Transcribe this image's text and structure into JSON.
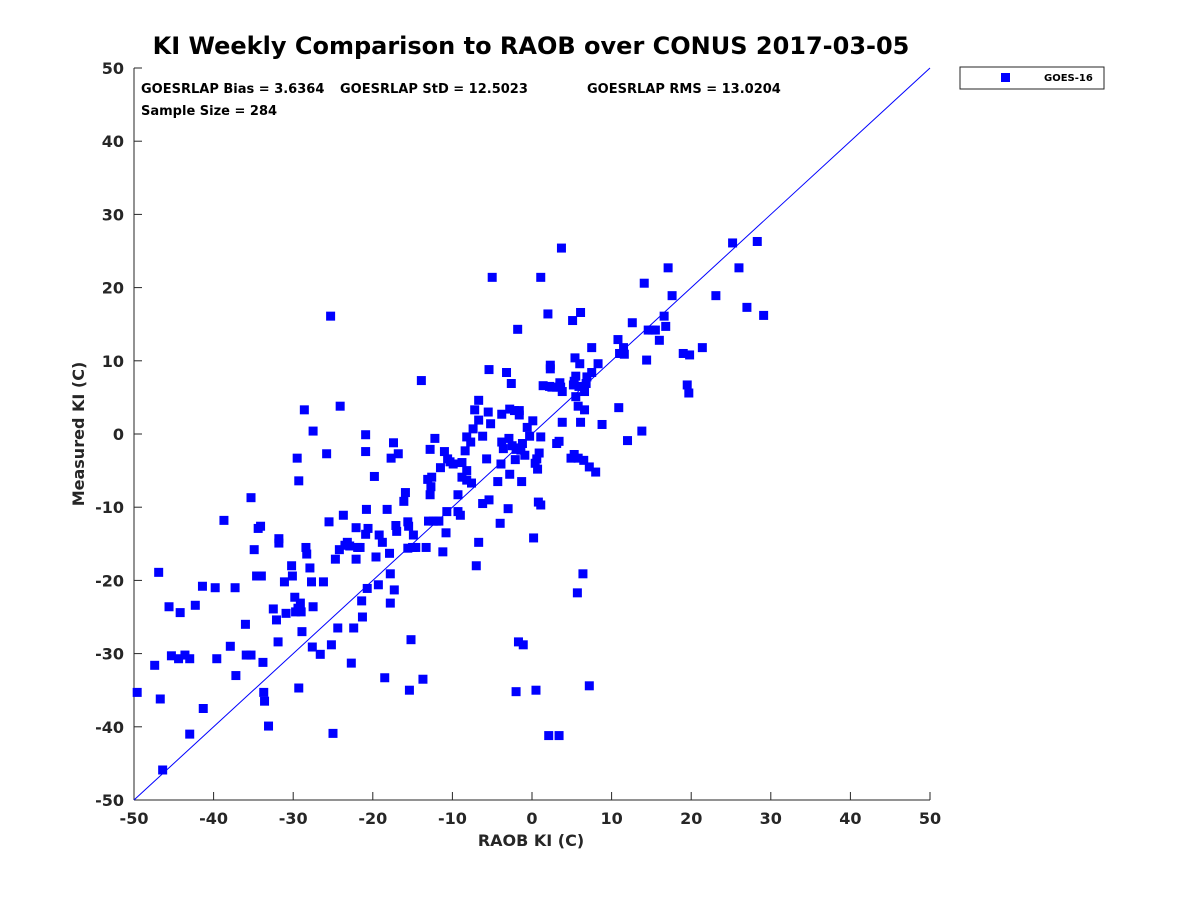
{
  "chart_data": {
    "type": "scatter",
    "title": "KI Weekly Comparison to RAOB over CONUS 2017-03-05",
    "xlabel": "RAOB KI (C)",
    "ylabel": "Measured KI (C)",
    "xlim": [
      -50,
      50
    ],
    "ylim": [
      -50,
      50
    ],
    "xticks": [
      "-50",
      "-40",
      "-30",
      "-20",
      "-10",
      "0",
      "10",
      "20",
      "30",
      "40",
      "50"
    ],
    "yticks": [
      "-50",
      "-40",
      "-30",
      "-20",
      "-10",
      "0",
      "10",
      "20",
      "30",
      "40",
      "50"
    ],
    "grid": false,
    "legend_position": "outside-top-right",
    "reference_line": {
      "name": "one-to-one",
      "from": [
        -50,
        -50
      ],
      "to": [
        50,
        50
      ],
      "color": "#0000ff"
    },
    "stats": {
      "bias": "GOESRLAP Bias = 3.6364",
      "std": "GOESRLAP StD = 12.5023",
      "rms": "GOESRLAP RMS = 13.0204",
      "sample_size": "Sample Size = 284"
    },
    "series": [
      {
        "name": "GOES-16",
        "color": "#0000ff",
        "marker": "square",
        "points": [
          [
            -49.6,
            -35.3
          ],
          [
            -47.4,
            -31.6
          ],
          [
            -46.9,
            -18.9
          ],
          [
            -46.7,
            -36.2
          ],
          [
            -46.4,
            -45.9
          ],
          [
            -45.6,
            -23.6
          ],
          [
            -45.3,
            -30.3
          ],
          [
            -44.4,
            -30.7
          ],
          [
            -44.2,
            -24.4
          ],
          [
            -43.6,
            -30.2
          ],
          [
            -43.0,
            -30.7
          ],
          [
            -43.0,
            -41.0
          ],
          [
            -42.3,
            -23.4
          ],
          [
            -41.4,
            -20.8
          ],
          [
            -41.3,
            -37.5
          ],
          [
            -39.8,
            -21.0
          ],
          [
            -39.6,
            -30.7
          ],
          [
            -38.7,
            -11.8
          ],
          [
            -37.9,
            -29.0
          ],
          [
            -37.3,
            -21.0
          ],
          [
            -37.2,
            -33.0
          ],
          [
            -36.0,
            -26.0
          ],
          [
            -35.9,
            -30.2
          ],
          [
            -35.3,
            -30.2
          ],
          [
            -35.3,
            -8.7
          ],
          [
            -34.9,
            -15.8
          ],
          [
            -34.6,
            -19.4
          ],
          [
            -34.4,
            -12.9
          ],
          [
            -34.1,
            -12.6
          ],
          [
            -34.0,
            -19.4
          ],
          [
            -33.8,
            -31.2
          ],
          [
            -33.7,
            -35.3
          ],
          [
            -33.6,
            -36.5
          ],
          [
            -33.1,
            -39.9
          ],
          [
            -32.5,
            -23.9
          ],
          [
            -32.1,
            -25.4
          ],
          [
            -31.9,
            -28.4
          ],
          [
            -31.8,
            -14.3
          ],
          [
            -31.8,
            -14.9
          ],
          [
            -31.1,
            -20.2
          ],
          [
            -30.9,
            -24.5
          ],
          [
            -30.2,
            -18.0
          ],
          [
            -30.1,
            -19.4
          ],
          [
            -29.8,
            -22.3
          ],
          [
            -29.7,
            -24.3
          ],
          [
            -29.5,
            -3.3
          ],
          [
            -29.4,
            -23.8
          ],
          [
            -29.3,
            -34.7
          ],
          [
            -29.3,
            -6.4
          ],
          [
            -29.1,
            -23.1
          ],
          [
            -29.0,
            -24.3
          ],
          [
            -28.9,
            -27.0
          ],
          [
            -28.6,
            3.3
          ],
          [
            -28.4,
            -15.5
          ],
          [
            -28.3,
            -16.4
          ],
          [
            -27.9,
            -18.3
          ],
          [
            -27.7,
            -20.2
          ],
          [
            -27.6,
            -29.1
          ],
          [
            -27.5,
            -23.6
          ],
          [
            -27.5,
            0.4
          ],
          [
            -26.6,
            -30.1
          ],
          [
            -26.2,
            -20.2
          ],
          [
            -25.8,
            -2.7
          ],
          [
            -25.5,
            -12.0
          ],
          [
            -25.3,
            16.1
          ],
          [
            -25.2,
            -28.8
          ],
          [
            -25.0,
            -40.9
          ],
          [
            -24.7,
            -17.1
          ],
          [
            -24.4,
            -26.5
          ],
          [
            -24.2,
            -15.8
          ],
          [
            -24.1,
            3.8
          ],
          [
            -23.7,
            -11.1
          ],
          [
            -23.5,
            -15.2
          ],
          [
            -23.2,
            -14.8
          ],
          [
            -22.9,
            -15.3
          ],
          [
            -22.7,
            -31.3
          ],
          [
            -22.4,
            -26.5
          ],
          [
            -22.1,
            -17.1
          ],
          [
            -22.1,
            -12.8
          ],
          [
            -21.9,
            -15.5
          ],
          [
            -21.6,
            -15.5
          ],
          [
            -21.4,
            -22.8
          ],
          [
            -21.3,
            -25.0
          ],
          [
            -20.9,
            -13.7
          ],
          [
            -20.9,
            -2.4
          ],
          [
            -20.9,
            -0.1
          ],
          [
            -20.8,
            -10.3
          ],
          [
            -20.7,
            -21.1
          ],
          [
            -20.6,
            -12.9
          ],
          [
            -19.8,
            -5.8
          ],
          [
            -19.6,
            -16.8
          ],
          [
            -19.3,
            -20.6
          ],
          [
            -19.2,
            -13.8
          ],
          [
            -18.8,
            -14.8
          ],
          [
            -18.5,
            -33.3
          ],
          [
            -18.2,
            -10.3
          ],
          [
            -17.9,
            -16.3
          ],
          [
            -17.8,
            -19.1
          ],
          [
            -17.8,
            -23.1
          ],
          [
            -17.7,
            -3.3
          ],
          [
            -17.4,
            -1.2
          ],
          [
            -17.3,
            -21.3
          ],
          [
            -17.1,
            -12.5
          ],
          [
            -17.0,
            -13.3
          ],
          [
            -16.8,
            -2.7
          ],
          [
            -16.1,
            -9.2
          ],
          [
            -15.9,
            -8.0
          ],
          [
            -15.6,
            -12.0
          ],
          [
            -15.6,
            -15.6
          ],
          [
            -15.5,
            -12.6
          ],
          [
            -15.4,
            -35.0
          ],
          [
            -15.2,
            -28.1
          ],
          [
            -15.0,
            -15.5
          ],
          [
            -14.9,
            -13.8
          ],
          [
            -14.6,
            -15.5
          ],
          [
            -13.9,
            7.3
          ],
          [
            -13.7,
            -33.5
          ],
          [
            -13.3,
            -15.5
          ],
          [
            -13.1,
            -6.2
          ],
          [
            -13.0,
            -11.9
          ],
          [
            -12.8,
            -8.3
          ],
          [
            -12.8,
            -2.1
          ],
          [
            -12.7,
            -7.2
          ],
          [
            -12.6,
            -5.9
          ],
          [
            -12.4,
            -11.9
          ],
          [
            -12.2,
            -0.6
          ],
          [
            -12.0,
            -11.9
          ],
          [
            -11.7,
            -11.9
          ],
          [
            -11.5,
            -4.6
          ],
          [
            -11.2,
            -16.1
          ],
          [
            -11.0,
            -2.4
          ],
          [
            -10.8,
            -13.5
          ],
          [
            -10.7,
            -10.6
          ],
          [
            -10.6,
            -3.4
          ],
          [
            -10.3,
            -3.8
          ],
          [
            -9.9,
            -4.1
          ],
          [
            -9.3,
            -8.3
          ],
          [
            -9.3,
            -10.6
          ],
          [
            -9.0,
            -11.1
          ],
          [
            -8.8,
            -3.9
          ],
          [
            -8.8,
            -5.9
          ],
          [
            -8.4,
            -2.3
          ],
          [
            -8.2,
            -5.0
          ],
          [
            -8.2,
            -6.3
          ],
          [
            -8.2,
            -0.4
          ],
          [
            -7.7,
            -1.1
          ],
          [
            -7.6,
            -6.7
          ],
          [
            -7.4,
            0.7
          ],
          [
            -7.2,
            3.3
          ],
          [
            -7.0,
            -18.0
          ],
          [
            -6.7,
            -14.8
          ],
          [
            -6.7,
            1.9
          ],
          [
            -6.7,
            4.6
          ],
          [
            -6.2,
            -0.3
          ],
          [
            -6.2,
            -9.5
          ],
          [
            -5.7,
            -3.4
          ],
          [
            -5.5,
            3.0
          ],
          [
            -5.4,
            -9.0
          ],
          [
            -5.4,
            8.8
          ],
          [
            -5.2,
            1.4
          ],
          [
            -5.0,
            21.4
          ],
          [
            -4.3,
            -6.5
          ],
          [
            -4.0,
            -12.2
          ],
          [
            -3.9,
            -4.1
          ],
          [
            -3.8,
            -1.1
          ],
          [
            -3.8,
            2.7
          ],
          [
            -3.6,
            -2.0
          ],
          [
            -3.2,
            8.4
          ],
          [
            -3.0,
            -10.2
          ],
          [
            -2.9,
            -0.6
          ],
          [
            -2.8,
            3.4
          ],
          [
            -2.8,
            -5.5
          ],
          [
            -2.6,
            6.9
          ],
          [
            -2.5,
            -1.6
          ],
          [
            -2.2,
            3.2
          ],
          [
            -2.1,
            -3.5
          ],
          [
            -2.0,
            -35.2
          ],
          [
            -2.0,
            -2.1
          ],
          [
            -1.8,
            14.3
          ],
          [
            -1.7,
            -28.4
          ],
          [
            -1.6,
            3.2
          ],
          [
            -1.6,
            -1.9
          ],
          [
            -1.6,
            2.6
          ],
          [
            -1.4,
            -2.2
          ],
          [
            -1.3,
            -6.5
          ],
          [
            -1.2,
            -1.3
          ],
          [
            -1.1,
            -28.8
          ],
          [
            -0.9,
            -2.9
          ],
          [
            -0.6,
            0.9
          ],
          [
            -0.3,
            -0.3
          ],
          [
            0.1,
            1.8
          ],
          [
            0.2,
            -14.2
          ],
          [
            0.4,
            -4.0
          ],
          [
            0.5,
            -35.0
          ],
          [
            0.6,
            -3.4
          ],
          [
            0.7,
            -4.8
          ],
          [
            0.8,
            -9.3
          ],
          [
            0.9,
            -2.6
          ],
          [
            1.1,
            -9.7
          ],
          [
            1.1,
            -0.4
          ],
          [
            1.1,
            21.4
          ],
          [
            1.4,
            6.6
          ],
          [
            2.0,
            16.4
          ],
          [
            2.1,
            -41.2
          ],
          [
            2.2,
            6.5
          ],
          [
            2.3,
            8.9
          ],
          [
            2.3,
            9.4
          ],
          [
            2.5,
            6.4
          ],
          [
            3.1,
            6.4
          ],
          [
            3.1,
            -1.3
          ],
          [
            3.4,
            -1.0
          ],
          [
            3.4,
            -41.2
          ],
          [
            3.5,
            7.0
          ],
          [
            3.6,
            6.4
          ],
          [
            3.7,
            25.4
          ],
          [
            3.8,
            1.6
          ],
          [
            3.8,
            5.8
          ],
          [
            4.9,
            -3.3
          ],
          [
            5.1,
            15.5
          ],
          [
            5.2,
            6.7
          ],
          [
            5.3,
            7.2
          ],
          [
            5.3,
            -2.8
          ],
          [
            5.4,
            10.4
          ],
          [
            5.5,
            5.1
          ],
          [
            5.5,
            7.9
          ],
          [
            5.7,
            -21.7
          ],
          [
            5.8,
            3.8
          ],
          [
            5.8,
            -3.3
          ],
          [
            5.9,
            6.5
          ],
          [
            6.0,
            9.6
          ],
          [
            6.1,
            1.6
          ],
          [
            6.1,
            16.6
          ],
          [
            6.4,
            -19.1
          ],
          [
            6.5,
            -3.6
          ],
          [
            6.6,
            3.3
          ],
          [
            6.6,
            5.8
          ],
          [
            6.8,
            6.9
          ],
          [
            6.9,
            7.8
          ],
          [
            7.2,
            -34.4
          ],
          [
            7.2,
            -4.5
          ],
          [
            7.5,
            11.8
          ],
          [
            7.5,
            8.4
          ],
          [
            8.0,
            -5.2
          ],
          [
            8.3,
            9.6
          ],
          [
            8.8,
            1.3
          ],
          [
            10.8,
            12.9
          ],
          [
            10.9,
            3.6
          ],
          [
            11.0,
            11.0
          ],
          [
            11.5,
            11.8
          ],
          [
            11.6,
            10.9
          ],
          [
            12.0,
            -0.9
          ],
          [
            12.6,
            15.2
          ],
          [
            13.8,
            0.4
          ],
          [
            14.1,
            20.6
          ],
          [
            14.4,
            10.1
          ],
          [
            14.6,
            14.2
          ],
          [
            15.1,
            14.2
          ],
          [
            15.5,
            14.2
          ],
          [
            16.0,
            12.8
          ],
          [
            16.6,
            16.1
          ],
          [
            16.8,
            14.7
          ],
          [
            17.1,
            22.7
          ],
          [
            17.6,
            18.9
          ],
          [
            19.0,
            11.0
          ],
          [
            19.5,
            6.7
          ],
          [
            19.7,
            5.6
          ],
          [
            19.8,
            10.8
          ],
          [
            21.4,
            11.8
          ],
          [
            23.1,
            18.9
          ],
          [
            25.2,
            26.1
          ],
          [
            26.0,
            22.7
          ],
          [
            27.0,
            17.3
          ],
          [
            28.3,
            26.3
          ],
          [
            29.1,
            16.2
          ]
        ]
      }
    ]
  }
}
